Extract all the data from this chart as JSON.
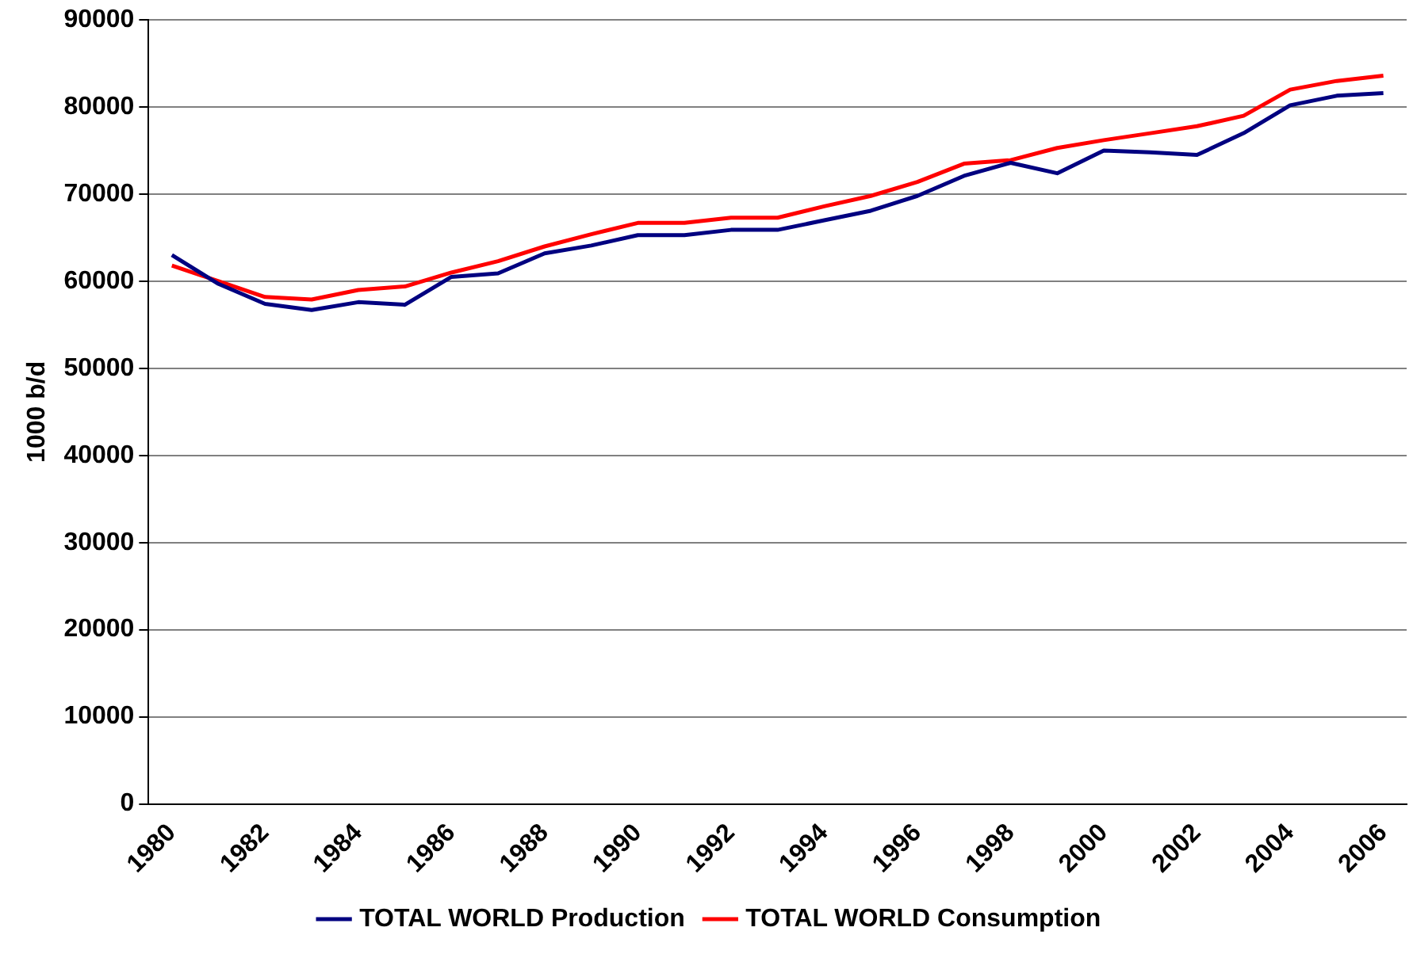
{
  "chart_data": {
    "type": "line",
    "ylabel": "1000 b/d",
    "categories": [
      "1980",
      null,
      "1982",
      null,
      "1984",
      null,
      "1986",
      null,
      "1988",
      null,
      "1990",
      null,
      "1992",
      null,
      "1994",
      null,
      "1996",
      null,
      "1998",
      null,
      "2000",
      null,
      "2002",
      null,
      "2004",
      null,
      "2006"
    ],
    "series": [
      {
        "name": "TOTAL WORLD Production",
        "color": "#000080",
        "values": [
          63000,
          59700,
          57400,
          56700,
          57600,
          57300,
          60500,
          60900,
          63200,
          64100,
          65300,
          65300,
          65900,
          65900,
          67000,
          68100,
          69800,
          72100,
          73600,
          72400,
          75000,
          74800,
          74500,
          77000,
          80200,
          81300,
          81600
        ]
      },
      {
        "name": "TOTAL WORLD Consumption",
        "color": "#ff0000",
        "values": [
          61800,
          60000,
          58200,
          57900,
          59000,
          59400,
          61000,
          62300,
          64000,
          65400,
          66700,
          66700,
          67300,
          67300,
          68600,
          69800,
          71400,
          73500,
          73900,
          75300,
          76200,
          77000,
          77800,
          79000,
          82000,
          83000,
          83600
        ]
      }
    ],
    "ylim": [
      0,
      90000
    ],
    "yticks": [
      0,
      10000,
      20000,
      30000,
      40000,
      50000,
      60000,
      70000,
      80000,
      90000
    ],
    "grid": "y",
    "legend": "bottom",
    "marker": "none",
    "line_style": "solid"
  }
}
